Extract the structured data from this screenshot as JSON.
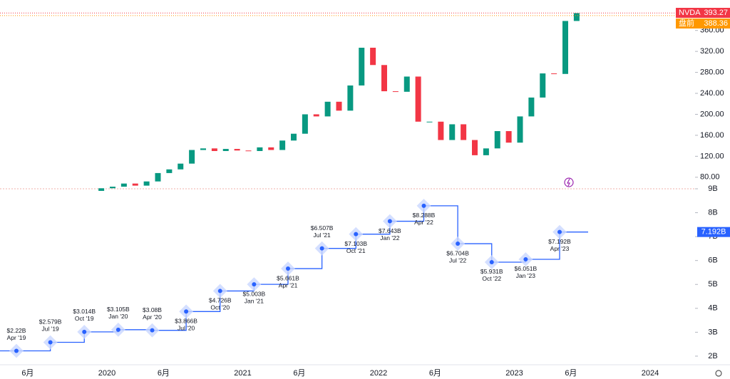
{
  "chart_data": [
    {
      "type": "candlestick",
      "symbol_tags": [
        {
          "name": "NVDA",
          "value": 393.27,
          "color": "#f23645"
        },
        {
          "name": "盘前",
          "value": 388.36,
          "color": "#ff9800"
        }
      ],
      "x": [
        "2019-12",
        "2020-01",
        "2020-02",
        "2020-03",
        "2020-04",
        "2020-05",
        "2020-06",
        "2020-07",
        "2020-08",
        "2020-09",
        "2020-10",
        "2020-11",
        "2020-12",
        "2021-01",
        "2021-02",
        "2021-03",
        "2021-04",
        "2021-05",
        "2021-06",
        "2021-07",
        "2021-08",
        "2021-09",
        "2021-10",
        "2021-11",
        "2021-12",
        "2022-01",
        "2022-02",
        "2022-03",
        "2022-04",
        "2022-05",
        "2022-06",
        "2022-07",
        "2022-08",
        "2022-09",
        "2022-10",
        "2022-11",
        "2022-12",
        "2023-01",
        "2023-02",
        "2023-03",
        "2023-04",
        "2023-05",
        "2023-06"
      ],
      "open": [
        54,
        59,
        62,
        68,
        64,
        72,
        88,
        95,
        106,
        132,
        135,
        130,
        134,
        131,
        130,
        137,
        132,
        150,
        163,
        200,
        196,
        224,
        207,
        255,
        327,
        294,
        244,
        243,
        272,
        186,
        186,
        151,
        181,
        151,
        122,
        135,
        168,
        146,
        196,
        232,
        278,
        277,
        378
      ],
      "close": [
        59,
        62,
        68,
        64,
        72,
        88,
        95,
        106,
        132,
        135,
        130,
        134,
        131,
        130,
        137,
        132,
        150,
        163,
        200,
        196,
        224,
        207,
        255,
        327,
        294,
        244,
        243,
        272,
        186,
        186,
        151,
        181,
        151,
        122,
        135,
        168,
        146,
        196,
        232,
        278,
        277,
        378,
        393
      ],
      "up_color": "#089981",
      "down_color": "#f23645",
      "ylim": [
        58,
        418
      ],
      "yticks": [
        {
          "value": 80,
          "label": "80.00"
        },
        {
          "value": 120,
          "label": "120.00"
        },
        {
          "value": 160,
          "label": "160.00"
        },
        {
          "value": 200,
          "label": "200.00"
        },
        {
          "value": 240,
          "label": "240.00"
        },
        {
          "value": 280,
          "label": "280.00"
        },
        {
          "value": 320,
          "label": "320.00"
        },
        {
          "value": 360,
          "label": "360.00"
        }
      ]
    },
    {
      "type": "step",
      "color": "#2962ff",
      "categories": [
        "Apr '19",
        "Jul '19",
        "Oct '19",
        "Jan '20",
        "Apr '20",
        "Jul '20",
        "Oct '20",
        "Jan '21",
        "Apr '21",
        "Jul '21",
        "Oct '21",
        "Jan '22",
        "Apr '22",
        "Jul '22",
        "Oct '22",
        "Jan '23",
        "Apr '23"
      ],
      "x": [
        "2019-05",
        "2019-08",
        "2019-11",
        "2020-02",
        "2020-05",
        "2020-08",
        "2020-11",
        "2021-02",
        "2021-05",
        "2021-08",
        "2021-11",
        "2022-02",
        "2022-05",
        "2022-08",
        "2022-11",
        "2023-02",
        "2023-05"
      ],
      "values": [
        2.22,
        2.579,
        3.014,
        3.105,
        3.08,
        3.866,
        4.726,
        5.003,
        5.661,
        6.507,
        7.103,
        7.643,
        8.288,
        6.704,
        5.931,
        6.051,
        7.192
      ],
      "value_labels": [
        "$2.22B",
        "$2.579B",
        "$3.014B",
        "$3.105B",
        "$3.08B",
        "$3.866B",
        "$4.726B",
        "$5.003B",
        "$5.661B",
        "$6.507B",
        "$7.103B",
        "$7.643B",
        "$8.288B",
        "$6.704B",
        "$5.931B",
        "$6.051B",
        "$7.192B"
      ],
      "current_label": {
        "value": 7.192,
        "label": "7.192B"
      },
      "ylim": [
        1.64,
        9
      ],
      "yticks": [
        {
          "value": 2,
          "label": "2B"
        },
        {
          "value": 3,
          "label": "3B"
        },
        {
          "value": 4,
          "label": "4B"
        },
        {
          "value": 5,
          "label": "5B"
        },
        {
          "value": 6,
          "label": "6B"
        },
        {
          "value": 7,
          "label": "7B"
        },
        {
          "value": 8,
          "label": "8B"
        },
        {
          "value": 9,
          "label": "9B"
        }
      ],
      "xticks": [
        {
          "value": "2019-06",
          "label": "6月"
        },
        {
          "value": "2020-01",
          "label": "2020"
        },
        {
          "value": "2020-06",
          "label": "6月"
        },
        {
          "value": "2021-01",
          "label": "2021"
        },
        {
          "value": "2021-06",
          "label": "6月"
        },
        {
          "value": "2022-01",
          "label": "2022"
        },
        {
          "value": "2022-06",
          "label": "6月"
        },
        {
          "value": "2023-01",
          "label": "2023"
        },
        {
          "value": "2023-06",
          "label": "6月"
        },
        {
          "value": "2024-01",
          "label": "2024"
        }
      ]
    }
  ]
}
